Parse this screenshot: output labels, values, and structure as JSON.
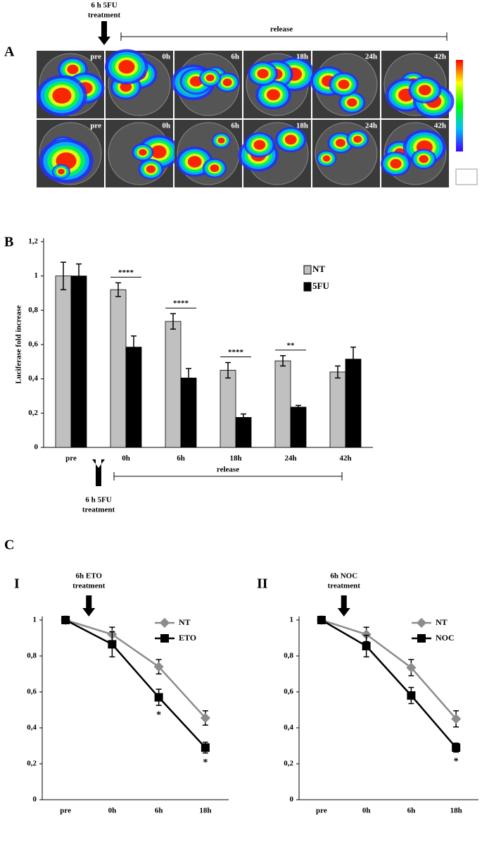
{
  "panel_labels": {
    "a": "A",
    "b": "B",
    "c": "C",
    "c1": "I",
    "c2": "II"
  },
  "panel_a": {
    "treatment": [
      "6 h 5FU",
      "treatment"
    ],
    "release": "release",
    "rows": [
      [
        "pre",
        "0h",
        "6h",
        "18h",
        "24h",
        "42h"
      ],
      [
        "pre",
        "0h",
        "6h",
        "18h",
        "24h",
        "42h"
      ]
    ]
  },
  "chart_data": [
    {
      "type": "bar",
      "ylabel": "Luciferase fold increase",
      "categories": [
        "pre",
        "0h",
        "6h",
        "18h",
        "24h",
        "42h"
      ],
      "series": [
        {
          "name": "NT",
          "color": "#c0c0c0",
          "values": [
            1,
            0.92,
            0.735,
            0.45,
            0.505,
            0.44
          ],
          "errors": [
            0.08,
            0.04,
            0.045,
            0.045,
            0.03,
            0.035
          ]
        },
        {
          "name": "5FU",
          "color": "#000000",
          "values": [
            1,
            0.585,
            0.405,
            0.175,
            0.235,
            0.515
          ],
          "errors": [
            0.07,
            0.065,
            0.055,
            0.02,
            0.01,
            0.07
          ]
        }
      ],
      "significance": [
        null,
        "****",
        "****",
        "****",
        "**",
        null
      ],
      "ylim": [
        0,
        1.2
      ],
      "yticks": [
        0,
        {
          "value": 0.2,
          "label": "0,2"
        },
        {
          "value": 0.4,
          "label": "0,4"
        },
        {
          "value": 0.6,
          "label": "0,6"
        },
        {
          "value": 0.8,
          "label": "0,8"
        },
        1,
        {
          "value": 1.2,
          "label": "1,2"
        }
      ],
      "treatment": [
        "6 h 5FU",
        "treatment"
      ],
      "release": "release"
    },
    {
      "type": "line",
      "categories": [
        "pre",
        "0h",
        "6h",
        "18h"
      ],
      "series": [
        {
          "name": "NT",
          "color": "#8c8c8c",
          "values": [
            1,
            0.92,
            0.74,
            0.455
          ],
          "errors": [
            0.01,
            0.04,
            0.04,
            0.04
          ]
        },
        {
          "name": "ETO",
          "color": "#000000",
          "values": [
            1,
            0.865,
            0.57,
            0.29
          ],
          "errors": [
            0.01,
            0.07,
            0.045,
            0.03
          ],
          "significance": [
            null,
            null,
            "*",
            "*"
          ]
        }
      ],
      "ylim": [
        0,
        1
      ],
      "yticks": [
        0,
        {
          "value": 0.2,
          "label": "0,2"
        },
        {
          "value": 0.4,
          "label": "0,4"
        },
        {
          "value": 0.6,
          "label": "0,6"
        },
        {
          "value": 0.8,
          "label": "0,8"
        },
        1
      ],
      "treatment": [
        "6h ETO",
        "treatment"
      ]
    },
    {
      "type": "line",
      "categories": [
        "pre",
        "0h",
        "6h",
        "18h"
      ],
      "series": [
        {
          "name": "NT",
          "color": "#8c8c8c",
          "values": [
            1,
            0.92,
            0.735,
            0.45
          ],
          "errors": [
            0.01,
            0.04,
            0.045,
            0.045
          ]
        },
        {
          "name": "NOC",
          "color": "#000000",
          "values": [
            1,
            0.855,
            0.58,
            0.29
          ],
          "errors": [
            0.01,
            0.06,
            0.045,
            0.025
          ],
          "significance": [
            null,
            null,
            null,
            "*"
          ]
        }
      ],
      "ylim": [
        0,
        1
      ],
      "yticks": [
        0,
        {
          "value": 0.2,
          "label": "0,2"
        },
        {
          "value": 0.4,
          "label": "0,4"
        },
        {
          "value": 0.6,
          "label": "0,6"
        },
        {
          "value": 0.8,
          "label": "0,8"
        },
        1
      ],
      "treatment": [
        "6h NOC",
        "treatment"
      ]
    }
  ]
}
